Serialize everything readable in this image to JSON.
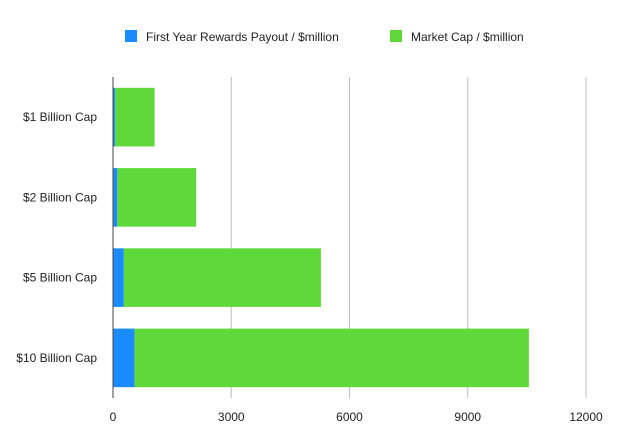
{
  "chart_data": {
    "type": "bar",
    "orientation": "horizontal",
    "stacked": true,
    "categories": [
      "$1 Billion Cap",
      "$2 Billion Cap",
      "$5 Billion Cap",
      "$10 Billion Cap"
    ],
    "series": [
      {
        "name": "First Year Rewards Payout / $million",
        "color": "#1a8cff",
        "values": [
          55,
          110,
          275,
          550
        ]
      },
      {
        "name": "Market Cap / $million",
        "color": "#5fd93a",
        "values": [
          1000,
          2000,
          5000,
          10000
        ]
      }
    ],
    "xlim": [
      0,
      12000
    ],
    "xticks": [
      0,
      3000,
      6000,
      9000,
      12000
    ],
    "grid": true,
    "legend_position": "top"
  }
}
